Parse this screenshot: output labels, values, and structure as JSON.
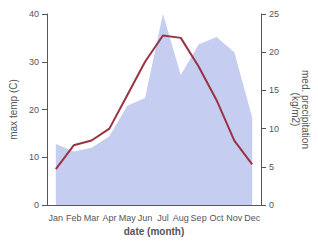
{
  "chart_data": {
    "type": "line",
    "categories": [
      "Jan",
      "Feb",
      "Mar",
      "Apr",
      "May",
      "Jun",
      "Jul",
      "Aug",
      "Sep",
      "Oct",
      "Nov",
      "Dec"
    ],
    "series": [
      {
        "type": "area",
        "axis": "y2",
        "color": "#c5cdf0",
        "values": [
          8.0,
          7.0,
          7.5,
          9.0,
          13.0,
          14.0,
          25.0,
          17.0,
          21.0,
          22.0,
          20.0,
          11.5
        ]
      },
      {
        "type": "line",
        "color": "#993344",
        "values": [
          7.5,
          12.5,
          13.5,
          16.0,
          23.0,
          30.0,
          35.5,
          35.0,
          29.0,
          22.0,
          13.5,
          8.5
        ]
      }
    ],
    "xlabel": "date (month)",
    "ylabel": "max temp (C)",
    "y2label": "med. precipitation\n(kg/m2)",
    "ylim": [
      0,
      40
    ],
    "yticks": [
      0,
      10,
      20,
      30,
      40
    ],
    "y2lim": [
      0,
      25
    ],
    "y2ticks": [
      0,
      5,
      10,
      15,
      20,
      25
    ],
    "grid": false
  }
}
